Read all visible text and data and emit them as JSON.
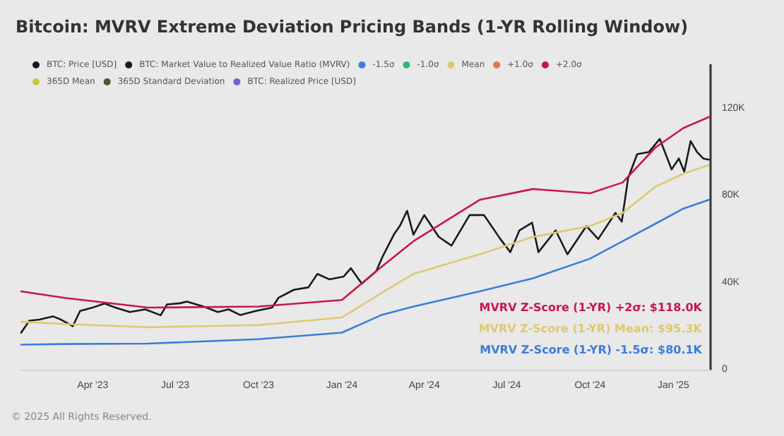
{
  "chart_data": {
    "type": "line",
    "title": "Bitcoin: MVRV Extreme Deviation Pricing Bands (1-YR Rolling Window)",
    "xlim": [
      "2023-01-12",
      "2025-02-11"
    ],
    "xticks": [
      {
        "value": "2023-04-01",
        "label": "Apr '23"
      },
      {
        "value": "2023-07-01",
        "label": "Jul '23"
      },
      {
        "value": "2023-10-01",
        "label": "Oct '23"
      },
      {
        "value": "2024-01-01",
        "label": "Jan '24"
      },
      {
        "value": "2024-04-01",
        "label": "Apr '24"
      },
      {
        "value": "2024-07-01",
        "label": "Jul '24"
      },
      {
        "value": "2024-10-01",
        "label": "Oct '24"
      },
      {
        "value": "2025-01-01",
        "label": "Jan '25"
      }
    ],
    "ylim": [
      0,
      140000
    ],
    "yticks": [
      0,
      {
        "value": 40000,
        "label": "40K"
      },
      {
        "value": 80000,
        "label": "80K"
      },
      {
        "value": 120000,
        "label": "120K"
      }
    ],
    "grid": false,
    "legend": "top left",
    "marker": "none",
    "line_style": "solid",
    "series": [
      {
        "name": "BTC: Price [USD]",
        "color": "#1a1a1a",
        "x": [
          "2023-01-12",
          "2023-01-21",
          "2023-02-01",
          "2023-02-16",
          "2023-02-25",
          "2023-03-10",
          "2023-03-18",
          "2023-03-31",
          "2023-04-14",
          "2023-04-26",
          "2023-05-12",
          "2023-05-29",
          "2023-06-15",
          "2023-06-22",
          "2023-07-06",
          "2023-07-14",
          "2023-07-31",
          "2023-08-17",
          "2023-08-29",
          "2023-09-11",
          "2023-09-28",
          "2023-10-16",
          "2023-10-23",
          "2023-11-09",
          "2023-11-25",
          "2023-12-05",
          "2023-12-18",
          "2024-01-03",
          "2024-01-11",
          "2024-01-23",
          "2024-02-08",
          "2024-02-15",
          "2024-02-28",
          "2024-03-05",
          "2024-03-13",
          "2024-03-20",
          "2024-04-01",
          "2024-04-17",
          "2024-05-01",
          "2024-05-21",
          "2024-06-06",
          "2024-06-24",
          "2024-07-05",
          "2024-07-15",
          "2024-07-29",
          "2024-08-05",
          "2024-08-24",
          "2024-09-06",
          "2024-09-27",
          "2024-10-10",
          "2024-10-29",
          "2024-11-05",
          "2024-11-12",
          "2024-11-22",
          "2024-12-05",
          "2024-12-17",
          "2024-12-30",
          "2025-01-07",
          "2025-01-13",
          "2025-01-20",
          "2025-01-27",
          "2025-02-03",
          "2025-02-09"
        ],
        "values": [
          17000,
          22500,
          23000,
          24500,
          23000,
          20000,
          27000,
          28400,
          30400,
          28500,
          26500,
          27700,
          25000,
          30000,
          30500,
          31300,
          29200,
          26500,
          27700,
          25100,
          27000,
          28500,
          33000,
          36700,
          37800,
          44000,
          41500,
          42800,
          46600,
          39500,
          45300,
          52000,
          62500,
          66000,
          73000,
          62000,
          71000,
          61000,
          57000,
          71000,
          71000,
          60000,
          54000,
          64000,
          67500,
          54000,
          64000,
          53000,
          66000,
          60000,
          72000,
          68000,
          88000,
          99000,
          100000,
          106000,
          92000,
          97000,
          91000,
          105000,
          100000,
          97000,
          96500
        ]
      },
      {
        "name": "BTC: Market Value to Realized Value Ratio (MVRV)",
        "color": "#1a1a1a"
      },
      {
        "name": "-1.5σ",
        "color": "#3b7dd8",
        "x": [
          "2023-01-12",
          "2023-03-01",
          "2023-06-01",
          "2023-10-01",
          "2024-01-01",
          "2024-02-13",
          "2024-03-20",
          "2024-06-01",
          "2024-07-30",
          "2024-10-01",
          "2024-11-06",
          "2024-12-12",
          "2025-01-12",
          "2025-02-09"
        ],
        "values": [
          11500,
          11800,
          12000,
          14000,
          17000,
          25000,
          29000,
          36000,
          42000,
          51000,
          59000,
          67000,
          74000,
          78000
        ]
      },
      {
        "name": "-1.0σ",
        "color": "#2bb673"
      },
      {
        "name": "Mean",
        "color": "#e0c870",
        "x": [
          "2023-01-12",
          "2023-03-01",
          "2023-06-01",
          "2023-10-01",
          "2024-01-01",
          "2024-02-13",
          "2024-03-20",
          "2024-06-01",
          "2024-07-30",
          "2024-10-01",
          "2024-11-06",
          "2024-12-12",
          "2025-01-12",
          "2025-02-09"
        ],
        "values": [
          22000,
          21000,
          19500,
          20500,
          24000,
          35000,
          44000,
          53000,
          61000,
          66000,
          72000,
          84000,
          90000,
          94000
        ]
      },
      {
        "name": "+1.0σ",
        "color": "#e8734a"
      },
      {
        "name": "+2.0σ",
        "color": "#c8174a",
        "x": [
          "2023-01-12",
          "2023-03-01",
          "2023-06-01",
          "2023-10-01",
          "2024-01-01",
          "2024-02-13",
          "2024-03-20",
          "2024-06-01",
          "2024-07-30",
          "2024-10-01",
          "2024-11-06",
          "2024-12-12",
          "2025-01-12",
          "2025-02-09"
        ],
        "values": [
          36000,
          33000,
          28500,
          29000,
          32000,
          47000,
          59000,
          78000,
          83000,
          81000,
          86000,
          102000,
          111000,
          116000
        ]
      },
      {
        "name": "365D Mean",
        "color": "#c7c83a"
      },
      {
        "name": "365D Standard Deviation",
        "color": "#4a5a2a"
      },
      {
        "name": "BTC: Realized Price [USD]",
        "color": "#7b5cc9"
      }
    ],
    "annotations": [
      "MVRV Z-Score (1-YR) +2σ: $118.0K",
      "MVRV Z-Score (1-YR) Mean: $95.3K",
      "MVRV Z-Score (1-YR) -1.5σ: $80.1K",
      "© 2025 All Rights Reserved."
    ]
  }
}
